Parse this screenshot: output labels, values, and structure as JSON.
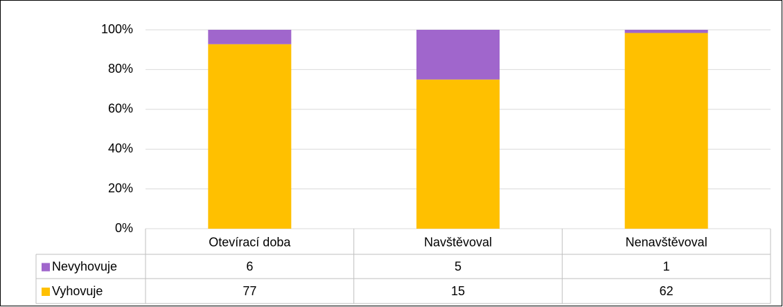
{
  "chart_data": {
    "type": "bar",
    "stacked": "percent",
    "categories": [
      "Otevírací doba",
      "Navštěvoval",
      "Nenavštěvoval"
    ],
    "series": [
      {
        "name": "Nevyhovuje",
        "color": "#a066cc",
        "values": [
          6,
          5,
          1
        ]
      },
      {
        "name": "Vyhovuje",
        "color": "#ffc000",
        "values": [
          77,
          15,
          62
        ]
      }
    ],
    "ylim": [
      0,
      100
    ],
    "yticks": [
      {
        "value": 0,
        "label": "0%"
      },
      {
        "value": 20,
        "label": "20%"
      },
      {
        "value": 40,
        "label": "40%"
      },
      {
        "value": 60,
        "label": "60%"
      },
      {
        "value": 80,
        "label": "80%"
      },
      {
        "value": 100,
        "label": "100%"
      }
    ],
    "grid": true,
    "data_table": true
  }
}
